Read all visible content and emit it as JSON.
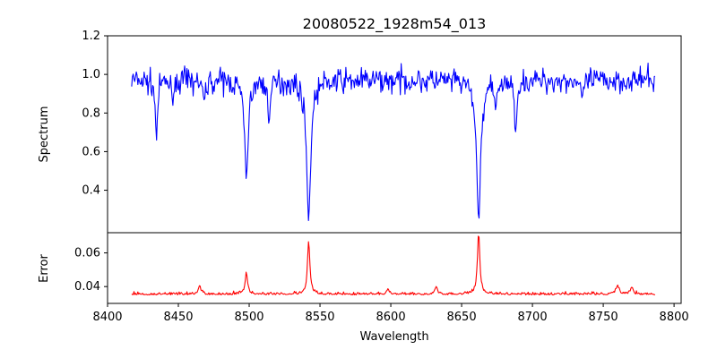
{
  "chart_data": {
    "title": "20080522_1928m54_013",
    "xlabel": "Wavelength",
    "xlim": [
      8400,
      8805
    ],
    "xticks": [
      8400,
      8450,
      8500,
      8550,
      8600,
      8650,
      8700,
      8750,
      8800
    ],
    "x_range": [
      8417,
      8787
    ],
    "panels": [
      {
        "id": "spectrum",
        "type": "line",
        "ylabel": "Spectrum",
        "ylim": [
          0.18,
          1.2
        ],
        "yticks": [
          "0.4",
          "0.6",
          "0.8",
          "1.0",
          "1.2"
        ],
        "color": "#0000ff",
        "baseline": 0.97,
        "noise": 0.06,
        "lines": [
          {
            "center": 8434.5,
            "depth": 0.3,
            "width": 0.8
          },
          {
            "center": 8446.0,
            "depth": 0.1,
            "width": 0.8
          },
          {
            "center": 8468.0,
            "depth": 0.1,
            "width": 1.0
          },
          {
            "center": 8498.0,
            "depth": 0.5,
            "width": 1.3
          },
          {
            "center": 8514.0,
            "depth": 0.2,
            "width": 0.9
          },
          {
            "center": 8542.0,
            "depth": 0.71,
            "width": 1.5
          },
          {
            "center": 8662.0,
            "depth": 0.71,
            "width": 1.5
          },
          {
            "center": 8674.0,
            "depth": 0.15,
            "width": 0.8
          },
          {
            "center": 8688.0,
            "depth": 0.27,
            "width": 0.8
          },
          {
            "center": 8735.0,
            "depth": 0.1,
            "width": 0.9
          }
        ]
      },
      {
        "id": "error",
        "type": "line",
        "ylabel": "Error",
        "ylim": [
          0.03,
          0.072
        ],
        "yticks": [
          "0.04",
          "0.06"
        ],
        "color": "#ff0000",
        "baseline": 0.035,
        "noise": 0.0015,
        "peaks": [
          {
            "center": 8465.0,
            "height": 0.005,
            "width": 1.0
          },
          {
            "center": 8498.0,
            "height": 0.013,
            "width": 0.9
          },
          {
            "center": 8542.0,
            "height": 0.032,
            "width": 0.9
          },
          {
            "center": 8598.0,
            "height": 0.003,
            "width": 1.0
          },
          {
            "center": 8632.0,
            "height": 0.004,
            "width": 1.0
          },
          {
            "center": 8662.0,
            "height": 0.037,
            "width": 0.9
          },
          {
            "center": 8760.0,
            "height": 0.005,
            "width": 1.2
          },
          {
            "center": 8770.0,
            "height": 0.004,
            "width": 1.0
          }
        ]
      }
    ]
  }
}
